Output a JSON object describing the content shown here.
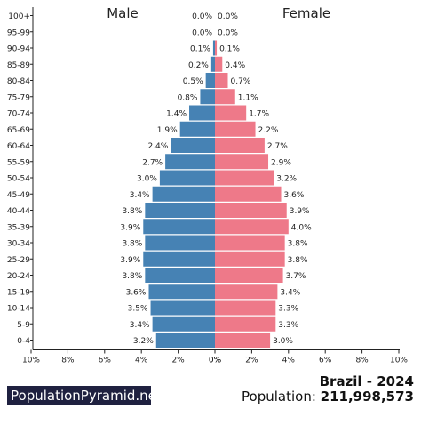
{
  "chart_data": {
    "type": "bar",
    "subtype": "population-pyramid",
    "headings": {
      "left": "Male",
      "right": "Female"
    },
    "age_groups": [
      "100+",
      "95-99",
      "90-94",
      "85-89",
      "80-84",
      "75-79",
      "70-74",
      "65-69",
      "60-64",
      "55-59",
      "50-54",
      "45-49",
      "40-44",
      "35-39",
      "30-34",
      "25-29",
      "20-24",
      "15-19",
      "10-14",
      "5-9",
      "0-4"
    ],
    "series": [
      {
        "name": "Male",
        "values": [
          0.0,
          0.0,
          0.1,
          0.2,
          0.5,
          0.8,
          1.4,
          1.9,
          2.4,
          2.7,
          3.0,
          3.4,
          3.8,
          3.9,
          3.8,
          3.9,
          3.8,
          3.6,
          3.5,
          3.4,
          3.2
        ]
      },
      {
        "name": "Female",
        "values": [
          0.0,
          0.0,
          0.1,
          0.4,
          0.7,
          1.1,
          1.7,
          2.2,
          2.7,
          2.9,
          3.2,
          3.6,
          3.9,
          4.0,
          3.8,
          3.8,
          3.7,
          3.4,
          3.3,
          3.3,
          3.0
        ]
      }
    ],
    "value_labels": {
      "male": [
        "0.0%",
        "0.0%",
        "0.1%",
        "0.2%",
        "0.5%",
        "0.8%",
        "1.4%",
        "1.9%",
        "2.4%",
        "2.7%",
        "3.0%",
        "3.4%",
        "3.8%",
        "3.9%",
        "3.8%",
        "3.9%",
        "3.8%",
        "3.6%",
        "3.5%",
        "3.4%",
        "3.2%"
      ],
      "female": [
        "0.0%",
        "0.0%",
        "0.1%",
        "0.4%",
        "0.7%",
        "1.1%",
        "1.7%",
        "2.2%",
        "2.7%",
        "2.9%",
        "3.2%",
        "3.6%",
        "3.9%",
        "4.0%",
        "3.8%",
        "3.8%",
        "3.7%",
        "3.4%",
        "3.3%",
        "3.3%",
        "3.0%"
      ]
    },
    "x_ticks_left": [
      "10%",
      "8%",
      "6%",
      "4%",
      "2%",
      "0%"
    ],
    "x_ticks_right": [
      "0%",
      "2%",
      "4%",
      "6%",
      "8%",
      "10%"
    ],
    "xlim": [
      0,
      10
    ],
    "grid": false,
    "colors": {
      "male": "#4682b4",
      "female": "#ee7989"
    }
  },
  "footer": {
    "brand": "PopulationPyramid.net",
    "country_year": "Brazil - 2024",
    "population_label": "Population: ",
    "population_value": "211,998,573"
  }
}
